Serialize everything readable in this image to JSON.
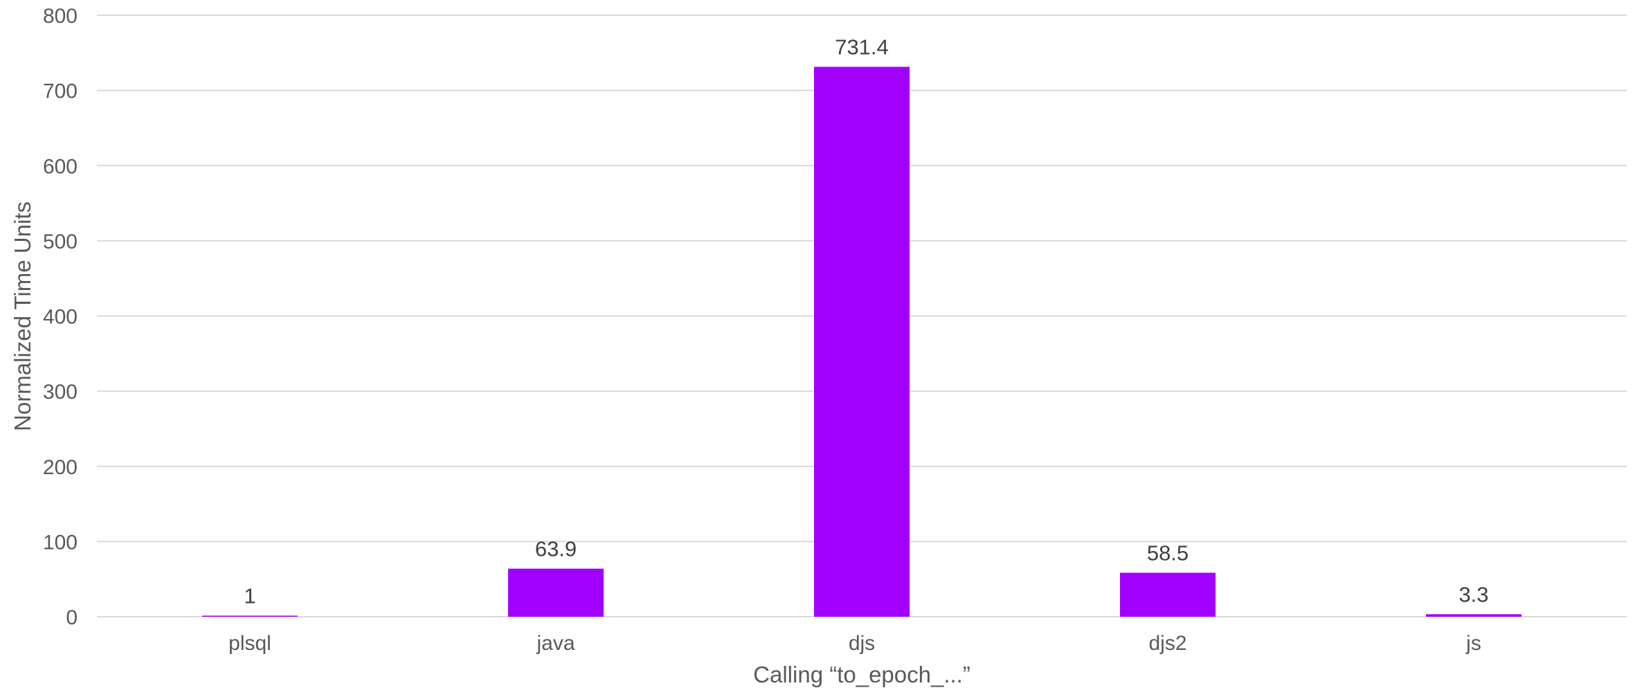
{
  "chart_data": {
    "type": "bar",
    "categories": [
      "plsql",
      "java",
      "djs",
      "djs2",
      "js"
    ],
    "series": [
      {
        "values": [
          1,
          63.9,
          731.4,
          58.5,
          3.3
        ]
      }
    ],
    "data_labels": [
      "1",
      "63.9",
      "731.4",
      "58.5",
      "3.3"
    ],
    "xlabel": "Calling “to_epoch_...”",
    "ylabel": "Normalized Time Units",
    "ylim": [
      0,
      800
    ],
    "yticks": [
      0,
      100,
      200,
      300,
      400,
      500,
      600,
      700,
      800
    ],
    "grid": true,
    "legend": "none",
    "bar_color": "#a100ff"
  }
}
